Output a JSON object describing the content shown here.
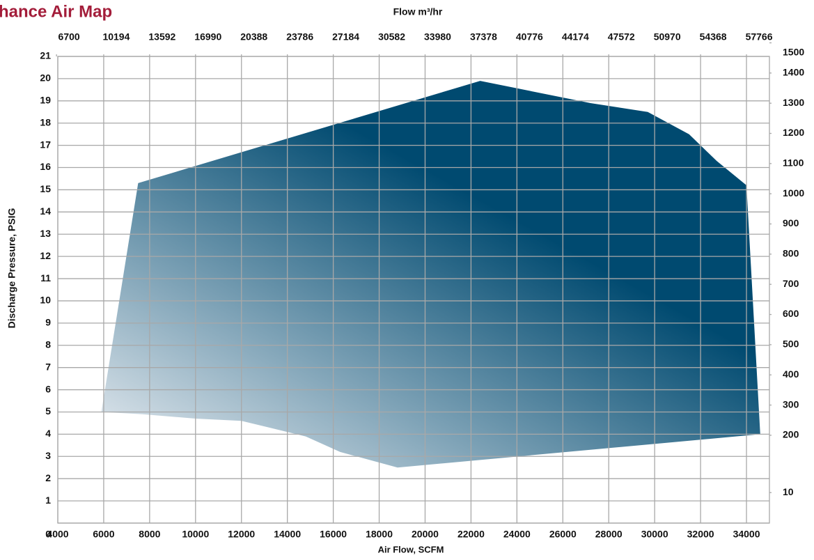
{
  "chart_data": {
    "type": "polygon",
    "title": "hance Air Map",
    "x2_title": "Flow m³/hr",
    "xlabel": "Air Flow, SCFM",
    "ylabel": "Discharge Pressure, PSIG",
    "x": [
      5900,
      7500,
      22400,
      27200,
      29700,
      31500,
      32700,
      34000,
      34600,
      18800,
      16300,
      14800,
      12000,
      10000,
      7700
    ],
    "y": [
      5.0,
      15.3,
      19.9,
      18.9,
      18.5,
      17.5,
      16.3,
      15.2,
      4.0,
      2.5,
      3.2,
      3.9,
      4.6,
      4.7,
      4.9
    ],
    "color": "#004a70",
    "gradient_start": "#eef1f5",
    "xlim": [
      4000,
      35000
    ],
    "xticks": [
      4000,
      6000,
      8000,
      10000,
      12000,
      14000,
      16000,
      18000,
      20000,
      22000,
      24000,
      26000,
      28000,
      30000,
      32000,
      34000
    ],
    "ylim": [
      0,
      21
    ],
    "yticks": [
      0,
      1,
      2,
      3,
      4,
      5,
      6,
      7,
      8,
      9,
      10,
      11,
      12,
      13,
      14,
      15,
      16,
      17,
      18,
      19,
      20,
      21
    ],
    "x2lim": [
      6796,
      59465
    ],
    "x2ticks": [
      6700,
      10194,
      13592,
      16990,
      20388,
      23786,
      27184,
      30582,
      33980,
      37378,
      40776,
      44174,
      47572,
      50970,
      54368,
      57766
    ],
    "y2lim": [
      -91,
      1455
    ],
    "y2ticks": [
      1500,
      1400,
      1300,
      1200,
      1100,
      1000,
      900,
      800,
      700,
      600,
      500,
      400,
      300,
      200,
      10
    ],
    "grid": true
  }
}
